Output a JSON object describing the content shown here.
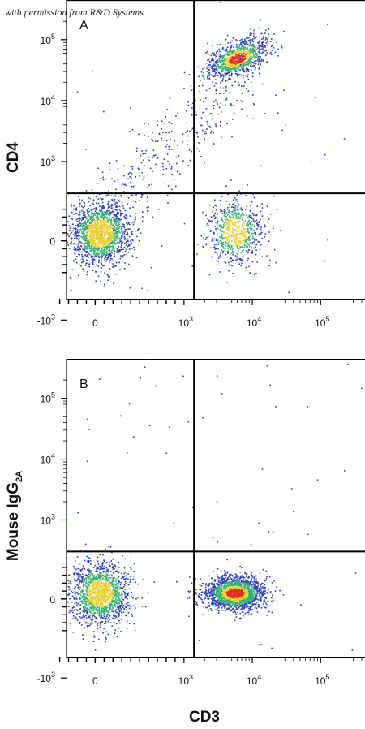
{
  "watermark": "with permission from R&D Systems",
  "colors": {
    "low": "#2a3fb8",
    "mid": "#33b070",
    "high": "#e8d030",
    "peak": "#e0301e"
  },
  "chart_data": [
    {
      "type": "scatter",
      "panel_label": "A",
      "xlabel": "",
      "ylabel": "CD4",
      "x_scale": "biexponential",
      "y_scale": "biexponential",
      "x_ticks": [
        {
          "v": 0,
          "base": "0",
          "exp": ""
        },
        {
          "v": 1000,
          "base": "10",
          "exp": "3"
        },
        {
          "v": 10000,
          "base": "10",
          "exp": "4"
        },
        {
          "v": 100000,
          "base": "10",
          "exp": "5"
        }
      ],
      "y_ticks": [
        {
          "v": -1000,
          "base": "-10",
          "exp": "3"
        },
        {
          "v": 0,
          "base": "0",
          "exp": ""
        },
        {
          "v": 1000,
          "base": "10",
          "exp": "3"
        },
        {
          "v": 10000,
          "base": "10",
          "exp": "4"
        },
        {
          "v": 100000,
          "base": "10",
          "exp": "5"
        }
      ],
      "quadrant_gate": {
        "x": 1400,
        "y": 600
      },
      "populations": [
        {
          "name": "",
          "center": [
            50,
            100
          ],
          "n": 1600,
          "density": "high"
        },
        {
          "name": "",
          "center": [
            5500,
            120
          ],
          "n": 700,
          "density": "mid"
        },
        {
          "name": "",
          "center": [
            6000,
            50000
          ],
          "n": 1000,
          "density": "peak"
        },
        {
          "name": "",
          "center": [
            400,
            3000
          ],
          "n": 350,
          "density": "low"
        }
      ]
    },
    {
      "type": "scatter",
      "panel_label": "B",
      "xlabel": "CD3",
      "ylabel": "Mouse IgG",
      "ylabel_sub": "2A",
      "x_scale": "biexponential",
      "y_scale": "biexponential",
      "x_ticks": [
        {
          "v": 0,
          "base": "0",
          "exp": ""
        },
        {
          "v": 1000,
          "base": "10",
          "exp": "3"
        },
        {
          "v": 10000,
          "base": "10",
          "exp": "4"
        },
        {
          "v": 100000,
          "base": "10",
          "exp": "5"
        }
      ],
      "y_ticks": [
        {
          "v": -1000,
          "base": "-10",
          "exp": "3"
        },
        {
          "v": 0,
          "base": "0",
          "exp": ""
        },
        {
          "v": 1000,
          "base": "10",
          "exp": "3"
        },
        {
          "v": 10000,
          "base": "10",
          "exp": "4"
        },
        {
          "v": 100000,
          "base": "10",
          "exp": "5"
        }
      ],
      "quadrant_gate": {
        "x": 1400,
        "y": 600
      },
      "populations": [
        {
          "name": "",
          "center": [
            50,
            80
          ],
          "n": 1500,
          "density": "high"
        },
        {
          "name": "",
          "center": [
            5500,
            80
          ],
          "n": 1900,
          "density": "peak"
        }
      ]
    }
  ]
}
